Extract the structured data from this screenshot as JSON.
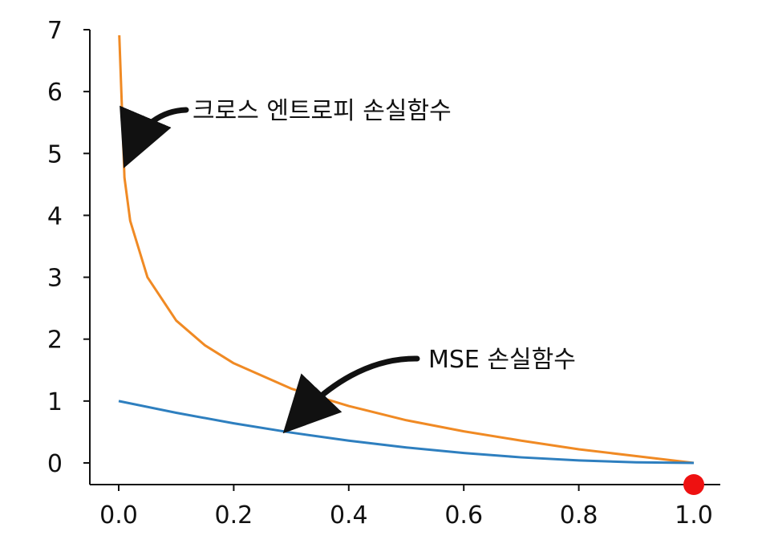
{
  "chart_data": {
    "type": "line",
    "title": "",
    "xlabel": "",
    "ylabel": "",
    "xlim": [
      0.0,
      1.0
    ],
    "ylim": [
      0,
      7
    ],
    "x_ticks": [
      "0.0",
      "0.2",
      "0.4",
      "0.6",
      "0.8",
      "1.0"
    ],
    "y_ticks": [
      "0",
      "1",
      "2",
      "3",
      "4",
      "5",
      "6",
      "7"
    ],
    "grid": false,
    "series": [
      {
        "color": "#f08a24",
        "x": [
          0.001,
          0.01,
          0.02,
          0.05,
          0.1,
          0.15,
          0.2,
          0.3,
          0.4,
          0.5,
          0.6,
          0.7,
          0.8,
          0.9,
          1.0
        ],
        "y": [
          6.91,
          4.61,
          3.91,
          3.0,
          2.3,
          1.9,
          1.61,
          1.2,
          0.92,
          0.69,
          0.51,
          0.36,
          0.22,
          0.11,
          0.0
        ]
      },
      {
        "color": "#2e7fbf",
        "x": [
          0.0,
          0.1,
          0.2,
          0.3,
          0.4,
          0.5,
          0.6,
          0.7,
          0.8,
          0.9,
          1.0
        ],
        "y": [
          1.0,
          0.81,
          0.64,
          0.49,
          0.36,
          0.25,
          0.16,
          0.09,
          0.04,
          0.01,
          0.0
        ]
      }
    ],
    "annotations": [
      {
        "text": "크로스 엔트로피 손실함수",
        "target": [
          0.01,
          5.05
        ]
      },
      {
        "text": "MSE 손실함수",
        "target": [
          0.3,
          0.65
        ]
      }
    ],
    "marker": {
      "x": 1.0,
      "y": -0.35,
      "color": "#ee1111"
    }
  }
}
